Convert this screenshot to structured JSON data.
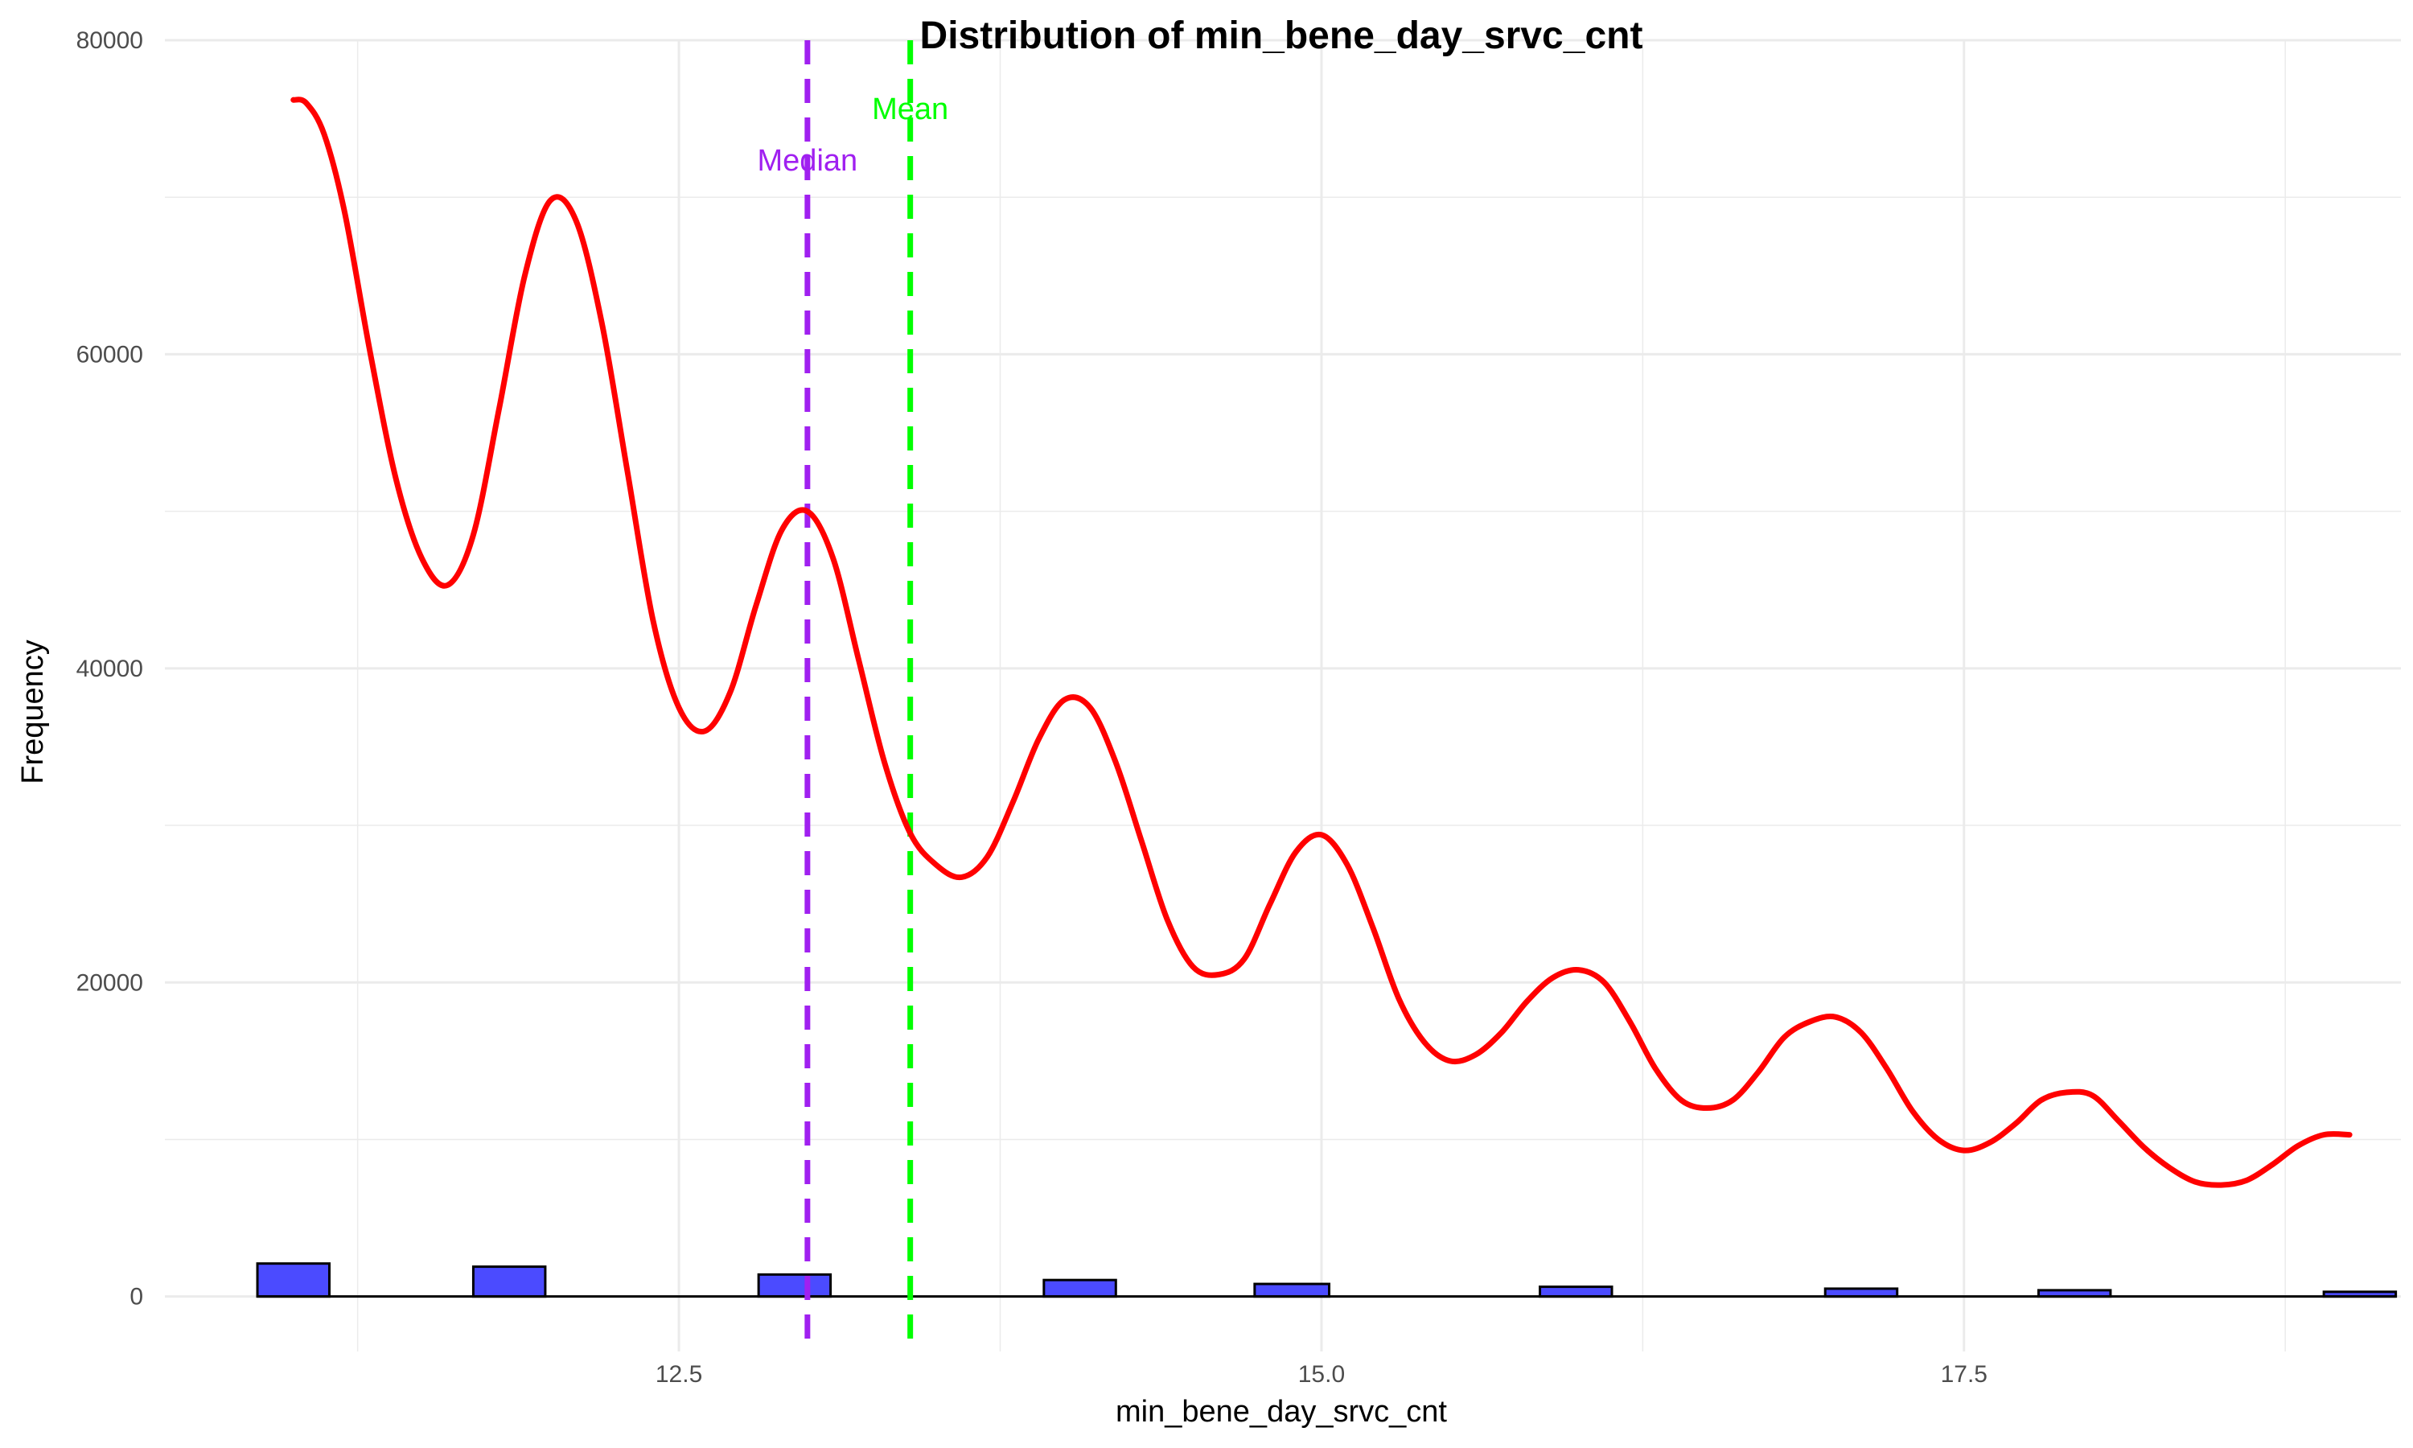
{
  "chart_data": {
    "type": "bar",
    "title": "Distribution of min_bene_day_srvc_cnt",
    "xlabel": "min_bene_day_srvc_cnt",
    "ylabel": "Frequency",
    "xlim": [
      10.5,
      19.2
    ],
    "ylim": [
      -3500,
      80000
    ],
    "x_ticks": [
      12.5,
      15.0,
      17.5
    ],
    "x_tick_labels": [
      "12.5",
      "15.0",
      "17.5"
    ],
    "y_ticks": [
      0,
      20000,
      40000,
      60000,
      80000
    ],
    "y_tick_labels": [
      "0",
      "20000",
      "40000",
      "60000",
      "80000"
    ],
    "grid": true,
    "colors": {
      "bar_fill": "#4b4bff",
      "bar_stroke": "#000000",
      "density_line": "#ff0000",
      "median_line": "#a020f0",
      "mean_line": "#00ff00",
      "grid": "#ebebeb"
    },
    "histogram": {
      "bins": [
        {
          "x_start": 10.86,
          "x_end": 11.14,
          "count": 2100
        },
        {
          "x_start": 11.7,
          "x_end": 11.98,
          "count": 1900
        },
        {
          "x_start": 12.81,
          "x_end": 13.09,
          "count": 1400
        },
        {
          "x_start": 13.92,
          "x_end": 14.2,
          "count": 1050
        },
        {
          "x_start": 14.74,
          "x_end": 15.03,
          "count": 800
        },
        {
          "x_start": 15.85,
          "x_end": 16.13,
          "count": 620
        },
        {
          "x_start": 16.96,
          "x_end": 17.24,
          "count": 500
        },
        {
          "x_start": 17.79,
          "x_end": 18.07,
          "count": 400
        },
        {
          "x_start": 18.9,
          "x_end": 19.18,
          "count": 300
        }
      ]
    },
    "density_curve": {
      "x": [
        11.0,
        11.05,
        11.12,
        11.2,
        11.3,
        11.4,
        11.5,
        11.6,
        11.7,
        11.8,
        11.9,
        12.0,
        12.1,
        12.2,
        12.3,
        12.4,
        12.5,
        12.6,
        12.7,
        12.8,
        12.9,
        13.0,
        13.1,
        13.2,
        13.3,
        13.4,
        13.5,
        13.6,
        13.7,
        13.8,
        13.9,
        14.0,
        14.1,
        14.2,
        14.3,
        14.4,
        14.5,
        14.6,
        14.7,
        14.8,
        14.9,
        15.0,
        15.1,
        15.2,
        15.3,
        15.4,
        15.5,
        15.6,
        15.7,
        15.8,
        15.9,
        16.0,
        16.1,
        16.2,
        16.3,
        16.4,
        16.5,
        16.6,
        16.7,
        16.8,
        16.9,
        17.0,
        17.1,
        17.2,
        17.3,
        17.4,
        17.5,
        17.6,
        17.7,
        17.8,
        17.9,
        18.0,
        18.1,
        18.2,
        18.3,
        18.4,
        18.5,
        18.6,
        18.7,
        18.8,
        18.9,
        19.0
      ],
      "y": [
        76200,
        76000,
        74000,
        69000,
        60000,
        52000,
        47000,
        45300,
        48500,
        56500,
        65000,
        69800,
        68500,
        62000,
        52500,
        43000,
        37500,
        36000,
        38500,
        44000,
        48800,
        50000,
        47000,
        40500,
        34000,
        29500,
        27500,
        26700,
        28000,
        31500,
        35500,
        38000,
        37500,
        34000,
        29000,
        24000,
        21000,
        20500,
        21500,
        25000,
        28300,
        29400,
        27500,
        23500,
        19000,
        16200,
        15000,
        15400,
        16800,
        18800,
        20300,
        20800,
        20000,
        17500,
        14500,
        12500,
        12000,
        12500,
        14300,
        16500,
        17500,
        17800,
        16800,
        14500,
        11800,
        10000,
        9300,
        9800,
        11000,
        12500,
        13000,
        12800,
        11200,
        9500,
        8200,
        7300,
        7100,
        7400,
        8400,
        9600,
        10300,
        10300
      ]
    },
    "reference_lines": [
      {
        "label": "Median",
        "x": 13.0,
        "color": "#a020f0",
        "style": "dashed"
      },
      {
        "label": "Mean",
        "x": 13.4,
        "color": "#00ff00",
        "style": "dashed"
      }
    ]
  }
}
